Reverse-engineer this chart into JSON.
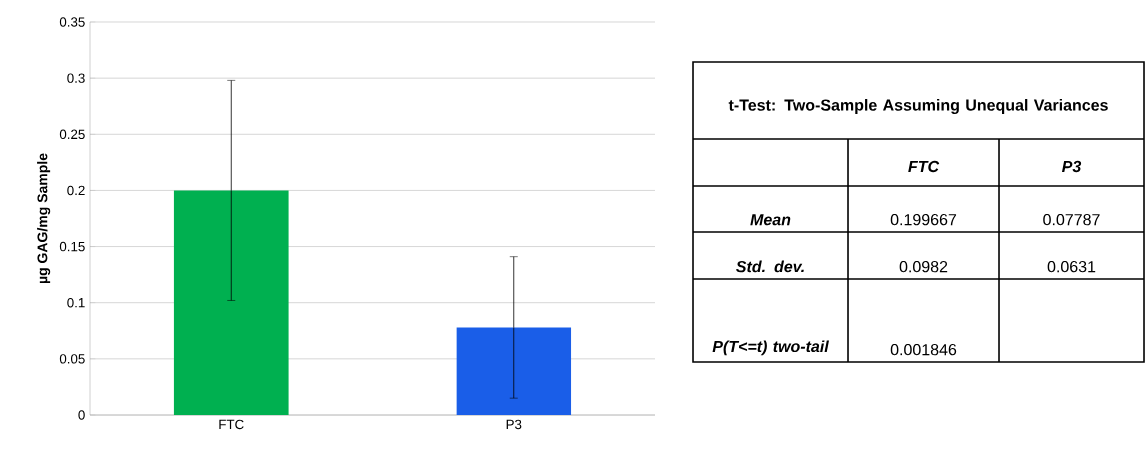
{
  "chart_data": [
    {
      "type": "bar",
      "ylabel": "µg GAG/mg Sample",
      "categories": [
        "FTC",
        "P3"
      ],
      "values": [
        0.2,
        0.078
      ],
      "errors": [
        0.098,
        0.063
      ],
      "colors": [
        "#00b050",
        "#1a5ee8"
      ],
      "ylim": [
        0,
        0.35
      ],
      "yticks": [
        0,
        0.05,
        0.1,
        0.15,
        0.2,
        0.25,
        0.3,
        0.35
      ],
      "grid": "y"
    },
    {
      "type": "other",
      "title": "t-Test: Two-Sample Assuming Unequal Variances",
      "categories": [
        "FTC",
        "P3"
      ],
      "y_categories": [
        "Mean",
        "Std. dev.",
        "P(T<=t) two-tail"
      ],
      "cell_labels": [
        [
          "0.199667",
          "0.07787"
        ],
        [
          "0.0982",
          "0.0631"
        ],
        [
          "0.001846",
          null
        ]
      ]
    }
  ]
}
